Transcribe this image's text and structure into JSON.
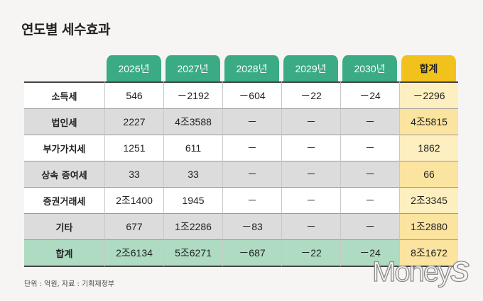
{
  "chart_data": {
    "type": "table",
    "title": "연도별 세수효과",
    "columns": [
      "2026년",
      "2027년",
      "2028년",
      "2029년",
      "2030년",
      "합계"
    ],
    "rows": [
      {
        "label": "소득세",
        "values": [
          "546",
          "－2192",
          "－604",
          "－22",
          "－24",
          "－2296"
        ]
      },
      {
        "label": "법인세",
        "values": [
          "2227",
          "4조3588",
          "－",
          "－",
          "－",
          "4조5815"
        ]
      },
      {
        "label": "부가가치세",
        "values": [
          "1251",
          "611",
          "－",
          "－",
          "－",
          "1862"
        ]
      },
      {
        "label": "상속 증여세",
        "values": [
          "33",
          "33",
          "－",
          "－",
          "－",
          "66"
        ]
      },
      {
        "label": "증권거래세",
        "values": [
          "2조1400",
          "1945",
          "－",
          "－",
          "－",
          "2조3345"
        ]
      },
      {
        "label": "기타",
        "values": [
          "677",
          "1조2286",
          "－83",
          "－",
          "－",
          "1조2880"
        ]
      },
      {
        "label": "합계",
        "values": [
          "2조6134",
          "5조6271",
          "－687",
          "－22",
          "－24",
          "8조1672"
        ]
      }
    ],
    "note": "단위 : 억원, 자료 : 기획재정부"
  },
  "logo": {
    "text": "Money",
    "mark": "S"
  },
  "colors": {
    "header": "#3aab84",
    "total_header": "#f1c21b",
    "sum_row": "#aedbc2",
    "total_col": "#fdefbf",
    "stripe": "#dcdcdc"
  }
}
